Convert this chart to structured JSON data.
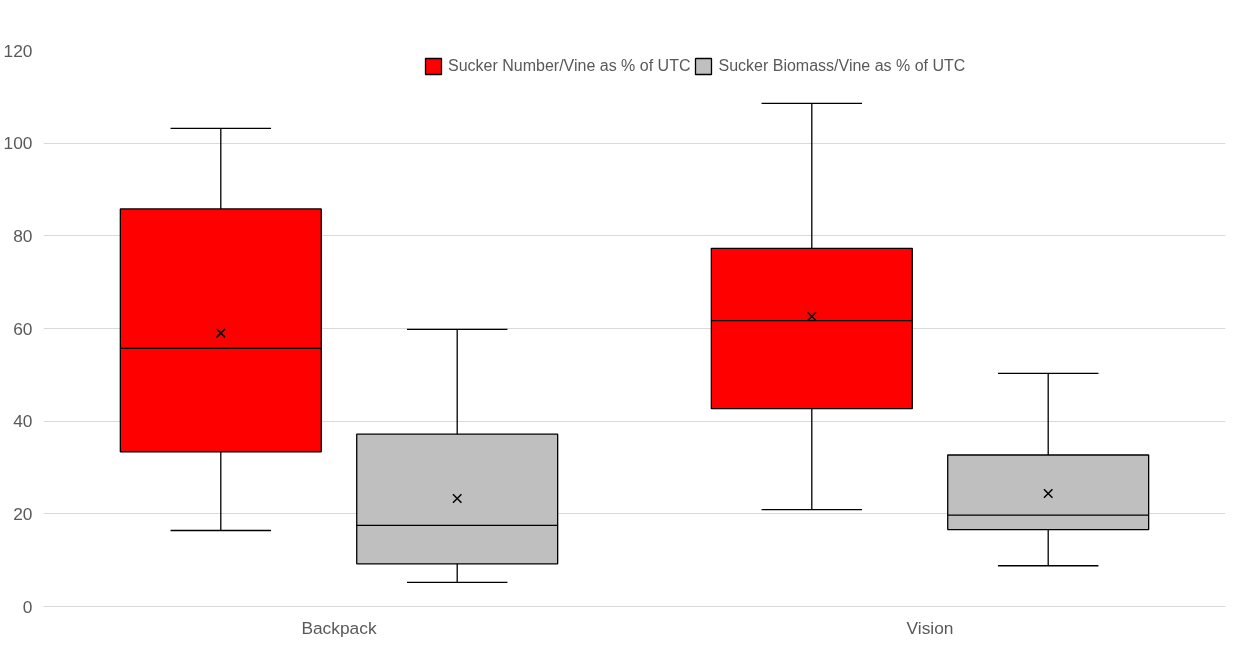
{
  "chart_data": {
    "type": "box",
    "categories": [
      "Backpack",
      "Vision"
    ],
    "series": [
      {
        "name": "Sucker Number/Vine as % of UTC",
        "color": "#ff0000",
        "boxes": [
          {
            "low": 16.4,
            "q1": 33.4,
            "median": 55.7,
            "q3": 85.8,
            "high": 103.2,
            "mean": 59.0
          },
          {
            "low": 20.9,
            "q1": 42.7,
            "median": 61.7,
            "q3": 77.3,
            "high": 108.6,
            "mean": 62.6
          }
        ]
      },
      {
        "name": "Sucker Biomass/Vine as % of UTC",
        "color": "#bfbfbf",
        "boxes": [
          {
            "low": 5.2,
            "q1": 9.2,
            "median": 17.5,
            "q3": 37.2,
            "high": 59.8,
            "mean": 23.3
          },
          {
            "low": 8.8,
            "q1": 16.6,
            "median": 19.7,
            "q3": 32.7,
            "high": 50.3,
            "mean": 24.4
          }
        ]
      }
    ],
    "ylim": [
      0,
      120
    ],
    "yticks": [
      0,
      20,
      40,
      60,
      80,
      100,
      120
    ],
    "grid": "y",
    "legend": "top",
    "marker": "cross"
  }
}
